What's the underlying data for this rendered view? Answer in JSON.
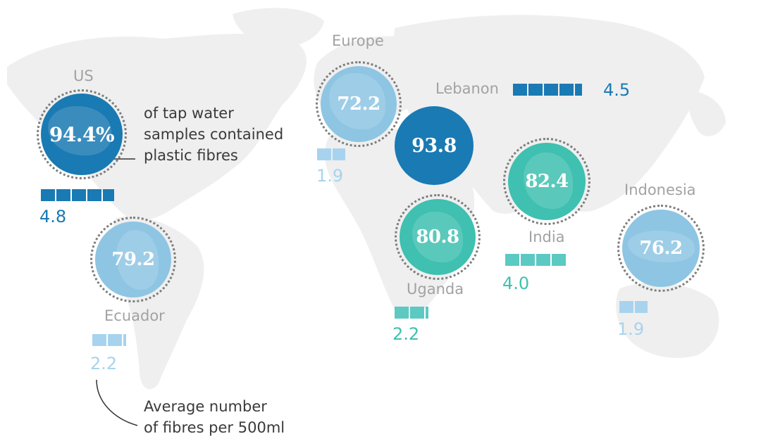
{
  "colors": {
    "dark_blue": "#1a7ab3",
    "light_blue": "#8ec5e3",
    "teal": "#3fc0b0",
    "bar_light_blue": "#a8d3ee",
    "bar_teal": "#5cc9c3"
  },
  "locations": [
    {
      "key": "us",
      "label": "US",
      "value": "94.4%",
      "fibres": "4.8",
      "color": "dark_blue"
    },
    {
      "key": "europe",
      "label": "Europe",
      "value": "72.2",
      "fibres": "1.9",
      "color": "light_blue"
    },
    {
      "key": "lebanon",
      "label": "Lebanon",
      "value": "93.8",
      "fibres": "4.5",
      "color": "dark_blue"
    },
    {
      "key": "india",
      "label": "India",
      "value": "82.4",
      "fibres": "4.0",
      "color": "teal"
    },
    {
      "key": "uganda",
      "label": "Uganda",
      "value": "80.8",
      "fibres": "2.2",
      "color": "teal"
    },
    {
      "key": "ecuador",
      "label": "Ecuador",
      "value": "79.2",
      "fibres": "2.2",
      "color": "light_blue"
    },
    {
      "key": "indonesia",
      "label": "Indonesia",
      "value": "76.2",
      "fibres": "1.9",
      "color": "light_blue"
    }
  ],
  "notes": {
    "percentage": [
      "of tap water",
      "samples contained",
      "plastic fibres"
    ],
    "fibres": [
      "Average number",
      "of fibres per 500ml"
    ]
  }
}
